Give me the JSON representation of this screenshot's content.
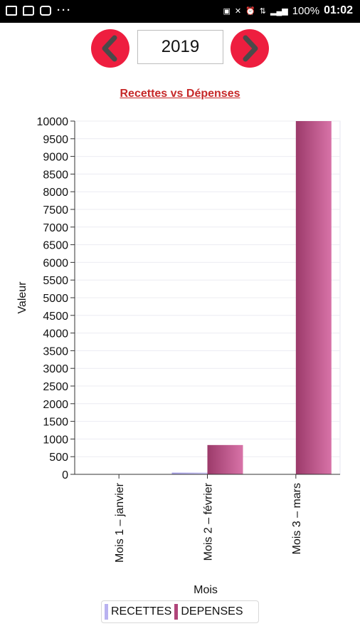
{
  "statusbar": {
    "icons_left": [
      "image-icon",
      "message-icon",
      "youtube-icon",
      "more-dots-icon"
    ],
    "icons_right": [
      "battery-saver-icon",
      "mute-icon",
      "alarm-icon",
      "data-icon",
      "signal-icon"
    ],
    "battery": "100%",
    "time": "01:02"
  },
  "navigation": {
    "year": "2019"
  },
  "colors": {
    "nav_button": "#ee1e3f",
    "title": "#c62828",
    "recettes": "#b9b2f0",
    "depenses": "#b0457a"
  },
  "chart_data": {
    "type": "bar",
    "title": "Recettes vs Dépenses",
    "xlabel": "Mois",
    "ylabel": "Valeur",
    "categories": [
      "Mois 1 – janvier",
      "Mois 2 – février",
      "Mois 3 – mars"
    ],
    "series": [
      {
        "name": "RECETTES",
        "values": [
          0,
          50,
          0
        ]
      },
      {
        "name": "DEPENSES",
        "values": [
          0,
          830,
          10000
        ]
      }
    ],
    "ylim": [
      0,
      10000
    ],
    "yticks": [
      "0",
      "500",
      "1000",
      "1500",
      "2000",
      "2500",
      "3000",
      "3500",
      "4000",
      "4500",
      "5000",
      "5500",
      "6000",
      "6500",
      "7000",
      "7500",
      "8000",
      "8500",
      "9000",
      "9500",
      "10000"
    ],
    "grid": true,
    "legend": "bottom-center"
  }
}
